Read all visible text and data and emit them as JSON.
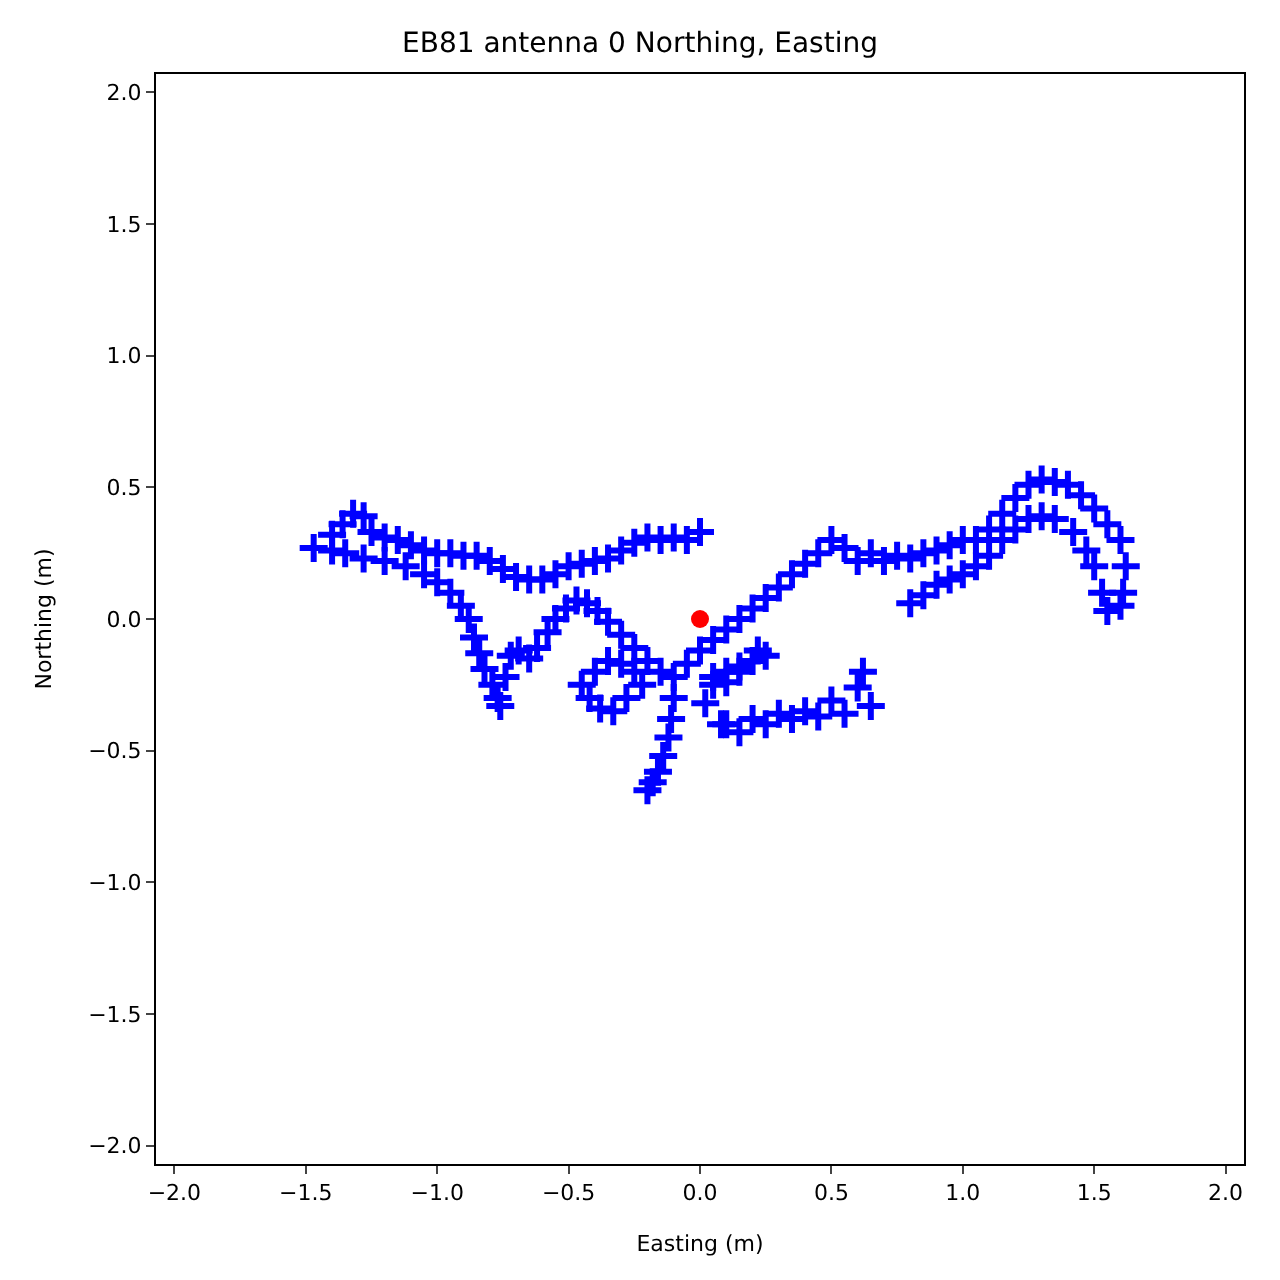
{
  "chart_data": {
    "type": "scatter",
    "title": "EB81 antenna 0 Northing, Easting",
    "xlabel": "Easting (m)",
    "ylabel": "Northing (m)",
    "xlim": [
      -2.07,
      2.07
    ],
    "ylim": [
      -2.07,
      2.07
    ],
    "xticks": [
      {
        "value": -2,
        "label": "−2.0"
      },
      {
        "value": -1.5,
        "label": "−1.5"
      },
      {
        "value": -1,
        "label": "−1.0"
      },
      {
        "value": -0.5,
        "label": "−0.5"
      },
      {
        "value": 0,
        "label": "0.0"
      },
      {
        "value": 0.5,
        "label": "0.5"
      },
      {
        "value": 1,
        "label": "1.0"
      },
      {
        "value": 1.5,
        "label": "1.5"
      },
      {
        "value": 2,
        "label": "2.0"
      }
    ],
    "yticks": [
      {
        "value": -2,
        "label": "−2.0"
      },
      {
        "value": -1.5,
        "label": "−1.5"
      },
      {
        "value": -1,
        "label": "−1.0"
      },
      {
        "value": -0.5,
        "label": "−0.5"
      },
      {
        "value": 0,
        "label": "0.0"
      },
      {
        "value": 0.5,
        "label": "0.5"
      },
      {
        "value": 1,
        "label": "1.0"
      },
      {
        "value": 1.5,
        "label": "1.5"
      },
      {
        "value": 2,
        "label": "2.0"
      }
    ],
    "series": [
      {
        "color": "#0000ff",
        "marker": "cross",
        "x": [
          -0.1,
          -0.05,
          0.0,
          0.05,
          0.1,
          0.15,
          0.2,
          0.25,
          0.3,
          0.35,
          0.4,
          0.45,
          0.5,
          0.55,
          0.6,
          0.65,
          0.7,
          0.75,
          0.8,
          0.85,
          0.9,
          0.95,
          1.0,
          1.05,
          1.1,
          1.15,
          1.2,
          1.25,
          1.3,
          1.35,
          1.4,
          1.45,
          1.5,
          1.55,
          1.6,
          1.62,
          1.61,
          1.6,
          1.55,
          1.53,
          1.5,
          1.47,
          1.42,
          1.35,
          1.3,
          1.25,
          1.2,
          1.15,
          1.1,
          1.05,
          1.0,
          0.95,
          0.9,
          0.85,
          0.8,
          0.0,
          -0.05,
          -0.1,
          -0.15,
          -0.2,
          -0.25,
          -0.3,
          -0.35,
          -0.4,
          -0.45,
          -0.5,
          -0.55,
          -0.6,
          -0.65,
          -0.7,
          -0.75,
          -0.8,
          -0.85,
          -0.9,
          -0.95,
          -1.0,
          -1.05,
          -1.1,
          -1.15,
          -1.2,
          -1.25,
          -1.28,
          -1.32,
          -1.36,
          -1.4,
          -1.47,
          -1.4,
          -1.35,
          -1.28,
          -1.2,
          -1.12,
          -1.05,
          -1.0,
          -0.95,
          -0.91,
          -0.88,
          -0.86,
          -0.84,
          -0.82,
          -0.79,
          -0.77,
          -0.76,
          -0.74,
          -0.72,
          -0.69,
          -0.65,
          -0.62,
          -0.58,
          -0.55,
          -0.51,
          -0.47,
          -0.43,
          -0.39,
          -0.35,
          -0.3,
          -0.25,
          -0.2,
          -0.15,
          -0.25,
          -0.3,
          -0.35,
          -0.4,
          -0.45,
          -0.42,
          -0.38,
          -0.33,
          -0.28,
          -0.22,
          -0.1,
          -0.11,
          -0.12,
          -0.14,
          -0.16,
          -0.18,
          -0.2,
          0.05,
          0.1,
          0.15,
          0.2,
          0.25,
          0.22,
          0.15,
          0.1,
          0.05,
          0.02,
          0.1,
          0.2,
          0.3,
          0.4,
          0.5,
          0.6,
          0.62,
          0.65,
          0.55,
          0.45,
          0.35,
          0.25,
          0.15,
          0.08
        ],
        "values": [
          -0.22,
          -0.17,
          -0.12,
          -0.08,
          -0.04,
          0.0,
          0.04,
          0.08,
          0.12,
          0.17,
          0.21,
          0.25,
          0.3,
          0.27,
          0.22,
          0.25,
          0.22,
          0.24,
          0.23,
          0.25,
          0.26,
          0.28,
          0.3,
          0.3,
          0.34,
          0.4,
          0.46,
          0.51,
          0.53,
          0.52,
          0.51,
          0.47,
          0.42,
          0.36,
          0.3,
          0.2,
          0.1,
          0.05,
          0.03,
          0.1,
          0.2,
          0.26,
          0.33,
          0.38,
          0.39,
          0.38,
          0.34,
          0.3,
          0.24,
          0.2,
          0.17,
          0.15,
          0.13,
          0.09,
          0.06,
          0.33,
          0.3,
          0.31,
          0.3,
          0.31,
          0.29,
          0.26,
          0.23,
          0.22,
          0.21,
          0.2,
          0.17,
          0.15,
          0.15,
          0.16,
          0.19,
          0.22,
          0.24,
          0.24,
          0.25,
          0.25,
          0.26,
          0.28,
          0.3,
          0.31,
          0.33,
          0.39,
          0.4,
          0.36,
          0.32,
          0.27,
          0.26,
          0.25,
          0.23,
          0.22,
          0.2,
          0.17,
          0.14,
          0.1,
          0.05,
          0.0,
          -0.07,
          -0.13,
          -0.19,
          -0.25,
          -0.3,
          -0.33,
          -0.22,
          -0.14,
          -0.12,
          -0.15,
          -0.11,
          -0.05,
          0.0,
          0.04,
          0.07,
          0.06,
          0.03,
          -0.01,
          -0.06,
          -0.11,
          -0.16,
          -0.2,
          -0.2,
          -0.17,
          -0.16,
          -0.2,
          -0.25,
          -0.3,
          -0.34,
          -0.35,
          -0.3,
          -0.25,
          -0.3,
          -0.38,
          -0.45,
          -0.52,
          -0.58,
          -0.62,
          -0.65,
          -0.22,
          -0.24,
          -0.2,
          -0.16,
          -0.14,
          -0.12,
          -0.18,
          -0.2,
          -0.25,
          -0.32,
          -0.4,
          -0.38,
          -0.36,
          -0.35,
          -0.31,
          -0.26,
          -0.2,
          -0.33,
          -0.36,
          -0.37,
          -0.38,
          -0.4,
          -0.43,
          -0.4
        ]
      },
      {
        "color": "#ff0000",
        "marker": "circle",
        "x": [
          0.0
        ],
        "values": [
          0.0
        ]
      }
    ]
  }
}
